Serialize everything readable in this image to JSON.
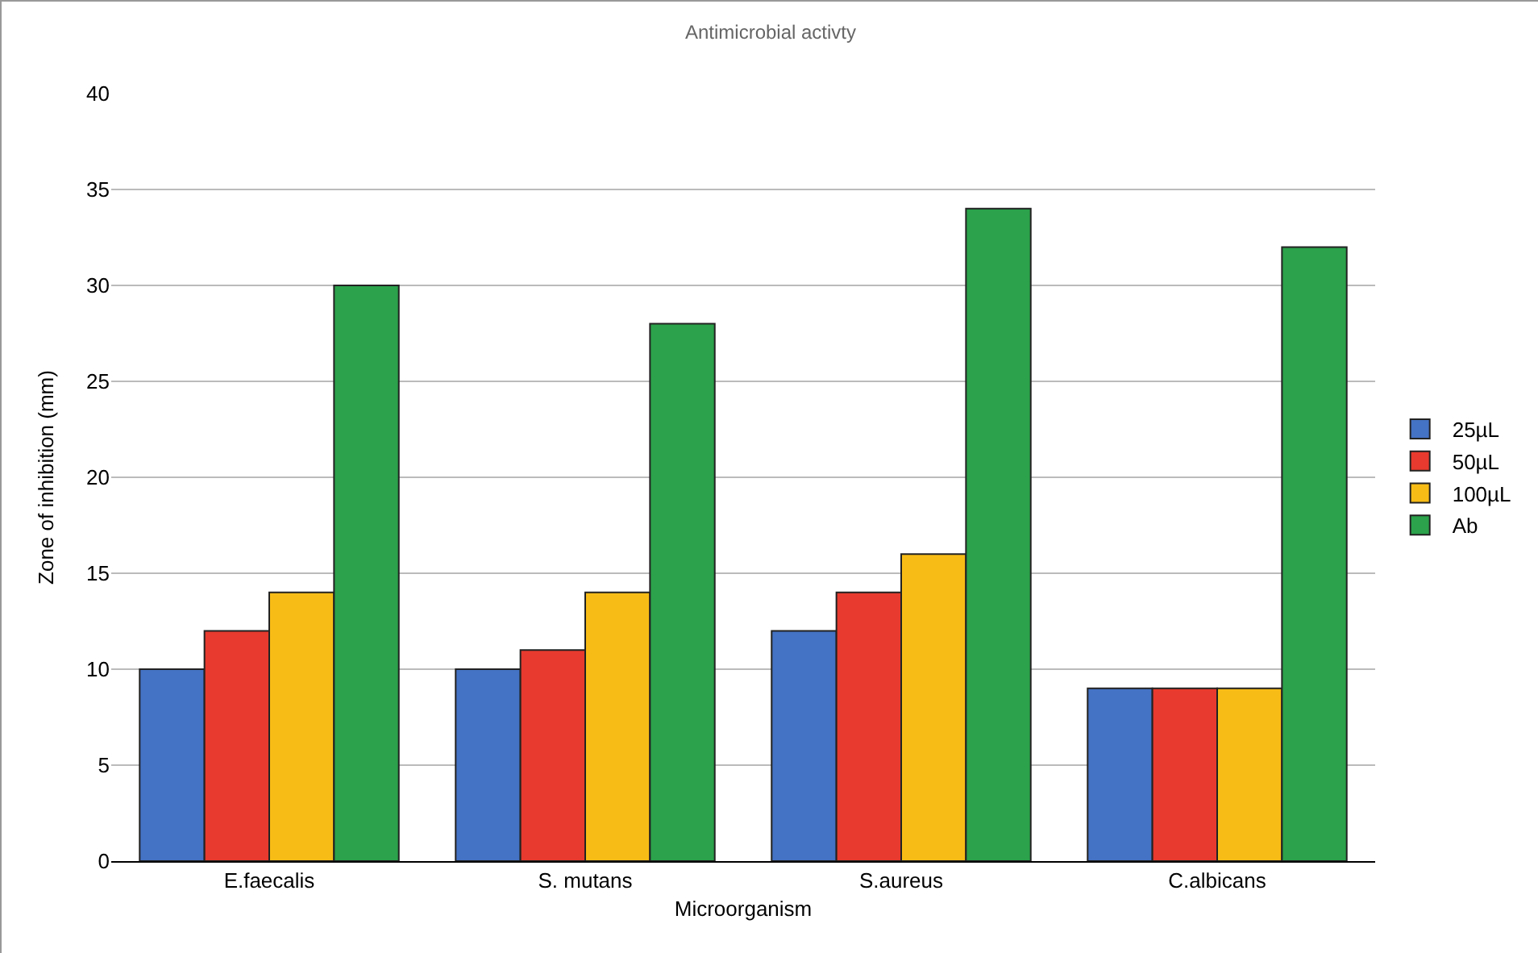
{
  "chart_data": {
    "type": "bar",
    "title": "Antimicrobial activty",
    "xlabel": "Microorganism",
    "ylabel": "Zone of inhibition (mm)",
    "categories": [
      "E.faecalis",
      "S. mutans",
      "S.aureus",
      "C.albicans"
    ],
    "series": [
      {
        "name": "25µL",
        "color": "#4472c4",
        "values": [
          10,
          10,
          12,
          9
        ]
      },
      {
        "name": "50µL",
        "color": "#e83a2e",
        "values": [
          12,
          11,
          14,
          9
        ]
      },
      {
        "name": "100µL",
        "color": "#f8bc16",
        "values": [
          14,
          14,
          16,
          9
        ]
      },
      {
        "name": "Ab",
        "color": "#2ba24b",
        "values": [
          30,
          28,
          34,
          32
        ]
      }
    ],
    "ylim": [
      0,
      40
    ],
    "yticks": [
      0,
      5,
      10,
      15,
      20,
      25,
      30,
      35,
      40
    ],
    "grid": "y",
    "legend": "right"
  }
}
